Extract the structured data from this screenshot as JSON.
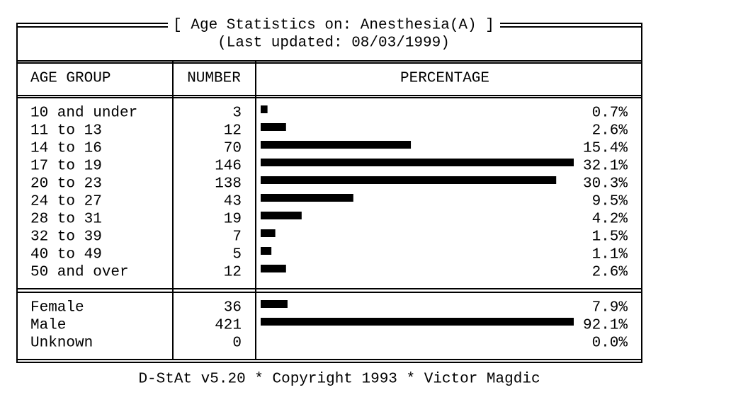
{
  "header": {
    "title": "[ Age Statistics on: Anesthesia(A) ]",
    "subtitle": "(Last updated: 08/03/1999)"
  },
  "table": {
    "columns": [
      "AGE GROUP",
      "NUMBER",
      "PERCENTAGE"
    ],
    "sections": [
      {
        "rows": [
          {
            "label": "10 and under",
            "number": 3,
            "percentage": 0.7,
            "percentage_label": "0.7%"
          },
          {
            "label": "11 to 13",
            "number": 12,
            "percentage": 2.6,
            "percentage_label": "2.6%"
          },
          {
            "label": "14 to 16",
            "number": 70,
            "percentage": 15.4,
            "percentage_label": "15.4%"
          },
          {
            "label": "17 to 19",
            "number": 146,
            "percentage": 32.1,
            "percentage_label": "32.1%"
          },
          {
            "label": "20 to 23",
            "number": 138,
            "percentage": 30.3,
            "percentage_label": "30.3%"
          },
          {
            "label": "24 to 27",
            "number": 43,
            "percentage": 9.5,
            "percentage_label": "9.5%"
          },
          {
            "label": "28 to 31",
            "number": 19,
            "percentage": 4.2,
            "percentage_label": "4.2%"
          },
          {
            "label": "32 to 39",
            "number": 7,
            "percentage": 1.5,
            "percentage_label": "1.5%"
          },
          {
            "label": "40 to 49",
            "number": 5,
            "percentage": 1.1,
            "percentage_label": "1.1%"
          },
          {
            "label": "50 and over",
            "number": 12,
            "percentage": 2.6,
            "percentage_label": "2.6%"
          }
        ]
      },
      {
        "rows": [
          {
            "label": "Female",
            "number": 36,
            "percentage": 7.9,
            "percentage_label": "7.9%"
          },
          {
            "label": "Male",
            "number": 421,
            "percentage": 92.1,
            "percentage_label": "92.1%"
          },
          {
            "label": "Unknown",
            "number": 0,
            "percentage": 0.0,
            "percentage_label": "0.0%"
          }
        ]
      }
    ]
  },
  "footer": "D-StAt v5.20 * Copyright 1993 * Victor Magdic"
}
